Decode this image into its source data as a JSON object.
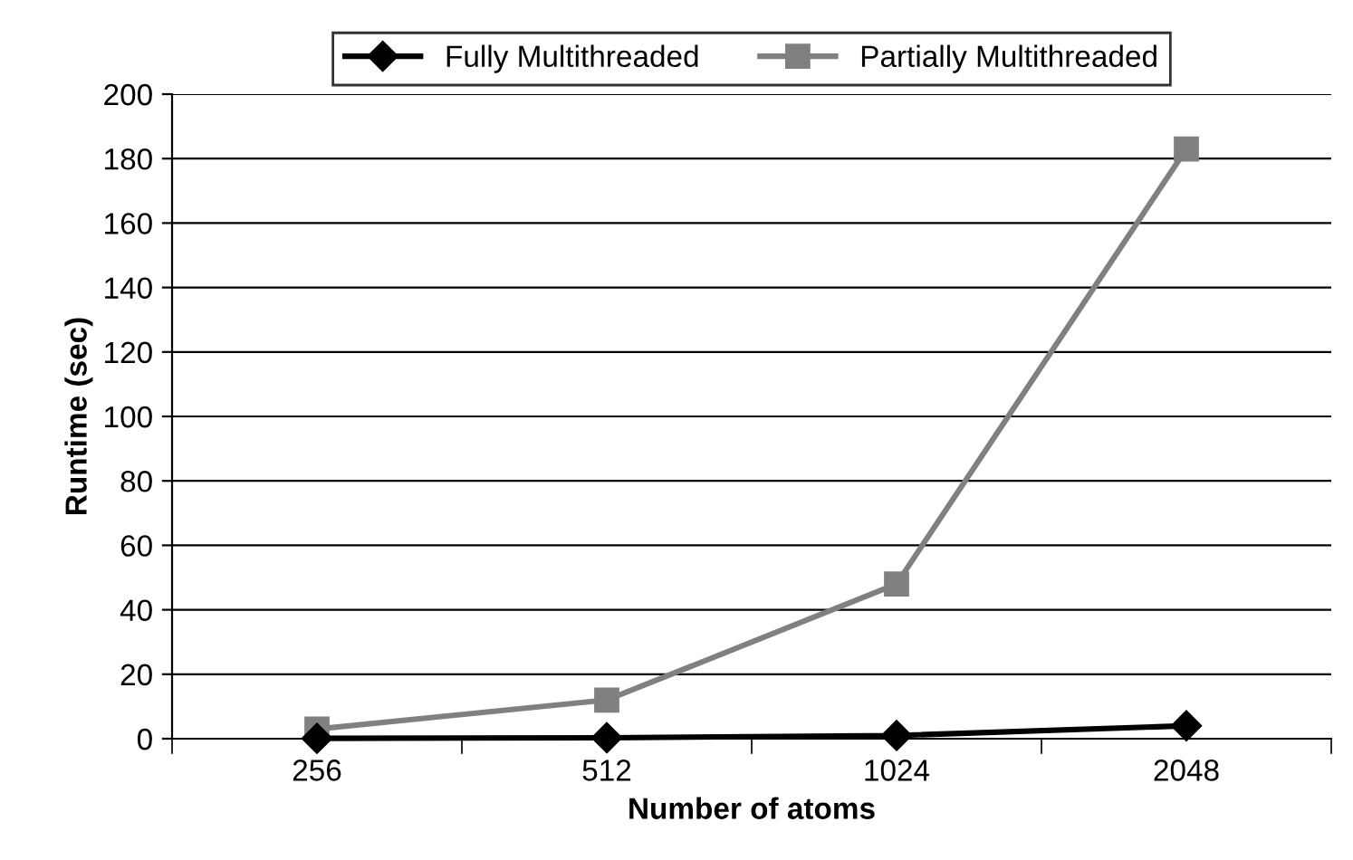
{
  "chart_data": {
    "type": "line",
    "xlabel": "Number of atoms",
    "ylabel": "Runtime (sec)",
    "categories": [
      "256",
      "512",
      "1024",
      "2048"
    ],
    "series": [
      {
        "name": "Fully Multithreaded",
        "color": "#000000",
        "marker": "diamond",
        "values": [
          0.1,
          0.3,
          1,
          4
        ]
      },
      {
        "name": "Partially Multithreaded",
        "color": "#808080",
        "marker": "square",
        "values": [
          3,
          12,
          48,
          183
        ]
      }
    ],
    "ylim": [
      0,
      200
    ],
    "yticks": [
      0,
      20,
      40,
      60,
      80,
      100,
      120,
      140,
      160,
      180,
      200
    ],
    "grid": "y",
    "legend": "top",
    "line_style": "solid"
  }
}
